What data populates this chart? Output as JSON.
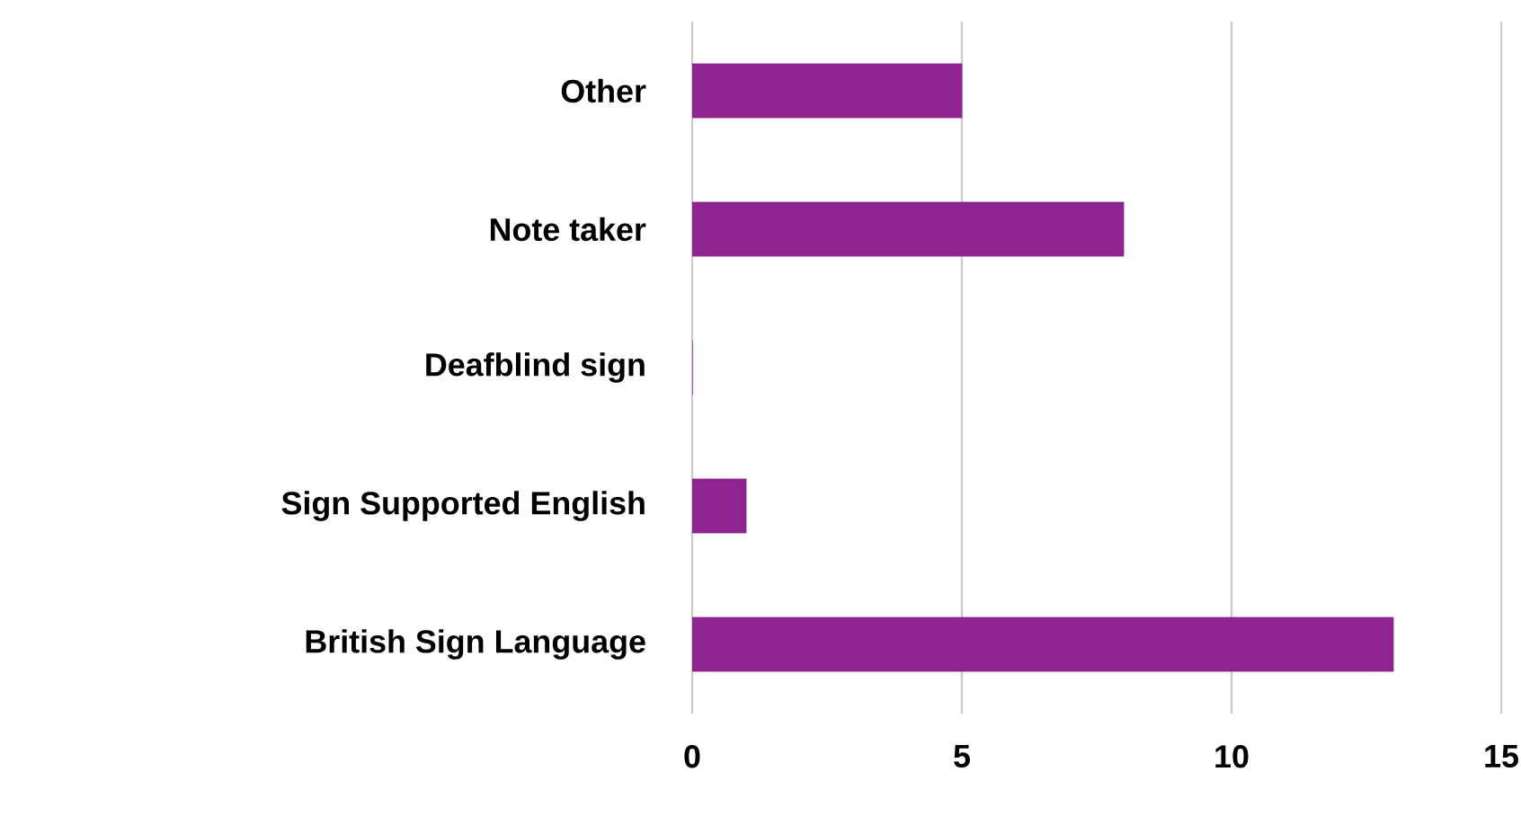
{
  "chart_data": {
    "type": "bar",
    "orientation": "horizontal",
    "categories": [
      "Other",
      "Note taker",
      "Deafblind sign",
      "Sign Supported English",
      "British Sign Language"
    ],
    "values": [
      5,
      8,
      0,
      1,
      13
    ],
    "color": "#8e2490",
    "xlim": [
      0,
      15
    ],
    "xticks": [
      0,
      5,
      10,
      15
    ],
    "grid": "x"
  }
}
